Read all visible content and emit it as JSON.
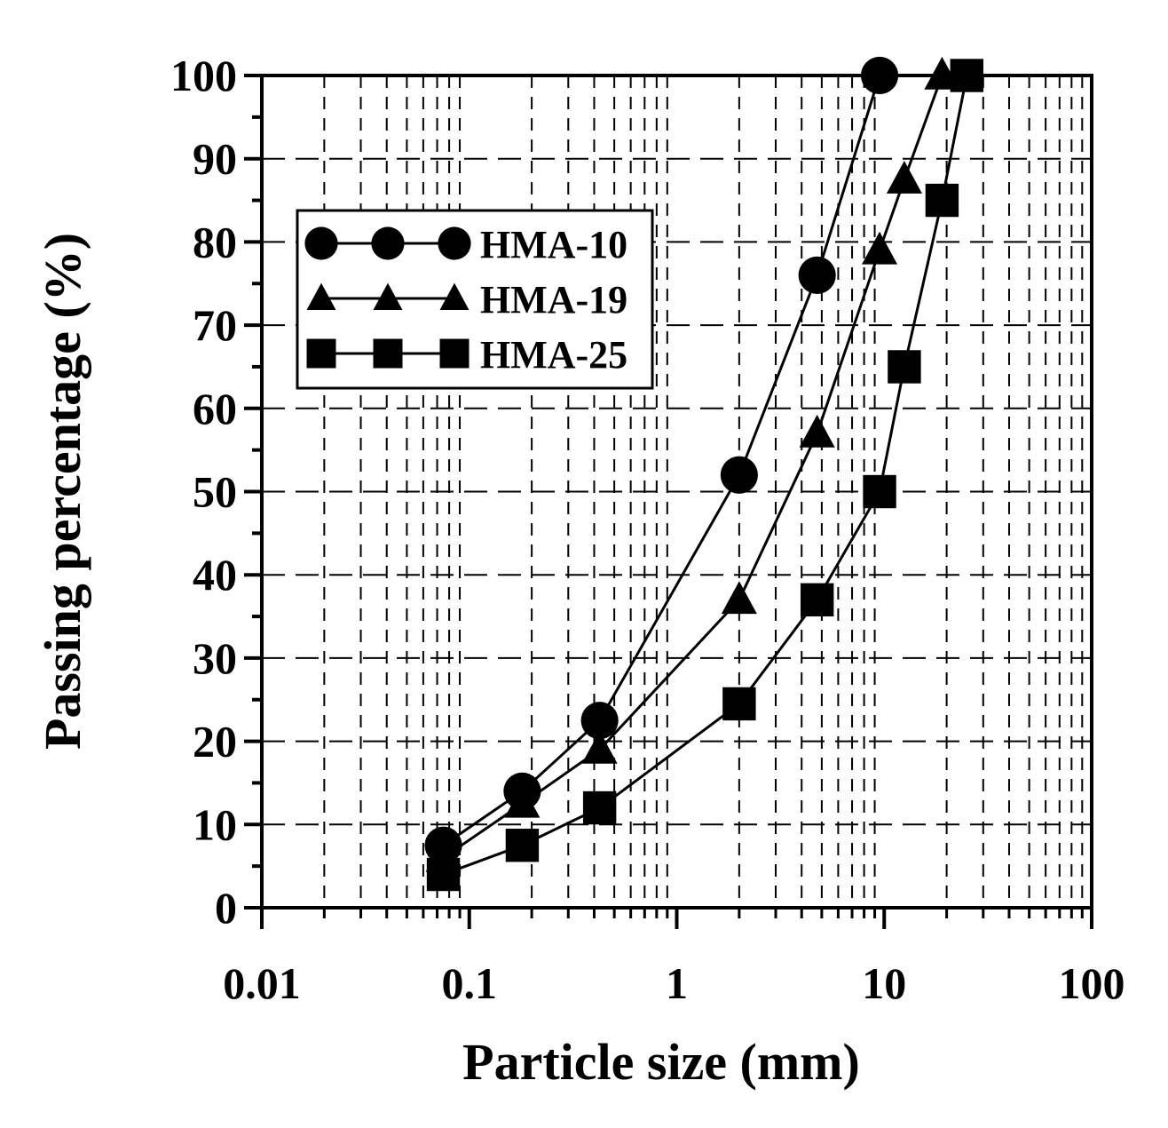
{
  "chart_data": {
    "type": "line",
    "title": "",
    "xlabel": "Particle size (mm)",
    "ylabel": "Passing percentage (%)",
    "xscale": "log",
    "xlim": [
      0.01,
      100
    ],
    "ylim": [
      0,
      100
    ],
    "x_ticks": [
      0.01,
      0.1,
      1,
      10,
      100
    ],
    "x_tick_labels": [
      "0.01",
      "0.1",
      "1",
      "10",
      "100"
    ],
    "y_ticks": [
      0,
      10,
      20,
      30,
      40,
      50,
      60,
      70,
      80,
      90,
      100
    ],
    "y_tick_labels": [
      "0",
      "10",
      "20",
      "30",
      "40",
      "50",
      "60",
      "70",
      "80",
      "90",
      "100"
    ],
    "grid": true,
    "legend_position": "upper-left",
    "series": [
      {
        "name": "HMA-10",
        "marker": "circle",
        "x": [
          0.075,
          0.18,
          0.425,
          2.0,
          4.75,
          9.5
        ],
        "values": [
          7.5,
          14,
          22.5,
          52,
          76,
          100
        ]
      },
      {
        "name": "HMA-19",
        "marker": "triangle",
        "x": [
          0.075,
          0.18,
          0.425,
          2.0,
          4.75,
          9.5,
          12.5,
          19.0
        ],
        "values": [
          6,
          12.5,
          19,
          37,
          57,
          79,
          87.5,
          100
        ]
      },
      {
        "name": "HMA-25",
        "marker": "square",
        "x": [
          0.075,
          0.18,
          0.425,
          2.0,
          4.75,
          9.5,
          12.5,
          19.0,
          25.0
        ],
        "values": [
          4,
          7.5,
          12,
          24.5,
          37,
          50,
          65,
          85,
          100
        ]
      }
    ]
  }
}
